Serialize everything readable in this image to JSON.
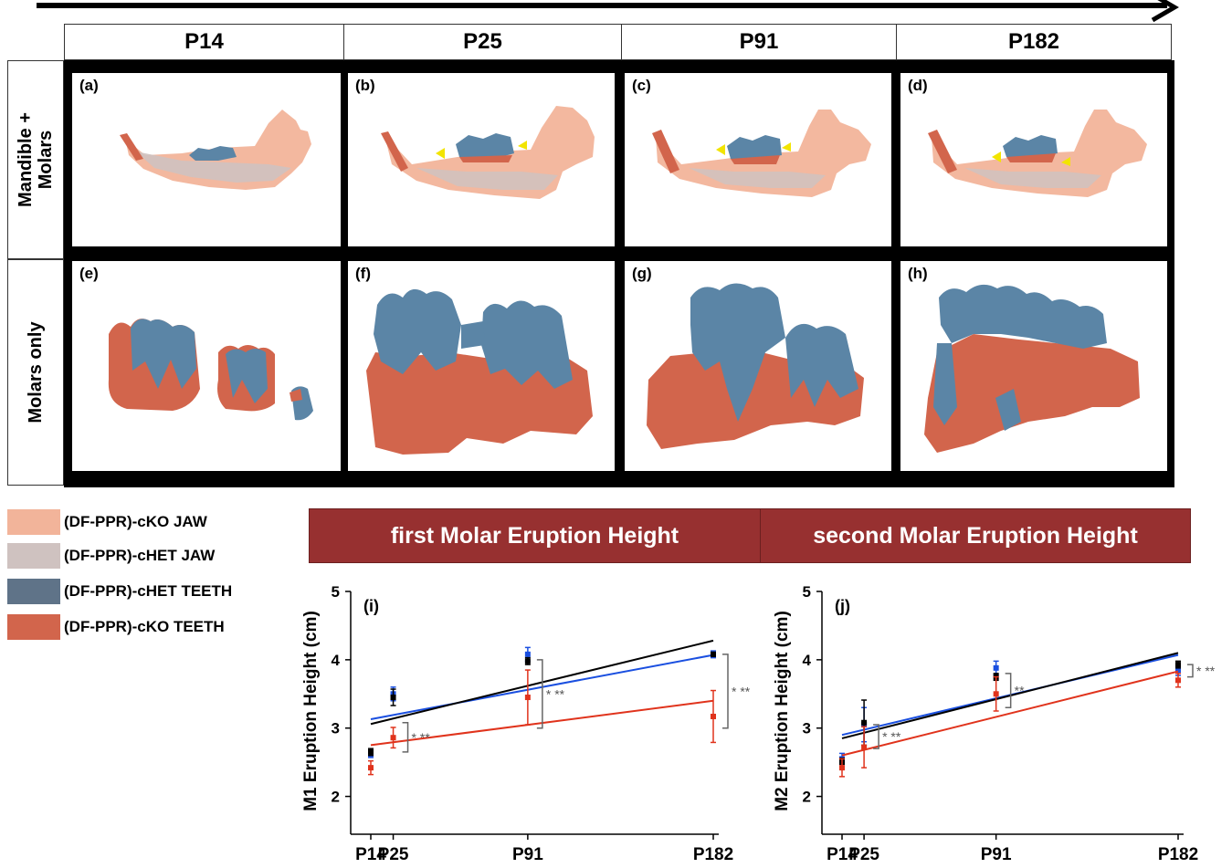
{
  "stages": [
    "P14",
    "P25",
    "P91",
    "P182"
  ],
  "rows": [
    {
      "label": "Mandible +\nMolars"
    },
    {
      "label": "Molars only"
    }
  ],
  "panels": [
    "(a)",
    "(b)",
    "(c)",
    "(d)",
    "(e)",
    "(f)",
    "(g)",
    "(h)"
  ],
  "legend": [
    {
      "label": "(DF-PPR)-cKO JAW",
      "color": "#f2b49a"
    },
    {
      "label": "(DF-PPR)-cHET JAW",
      "color": "#cfc2c0"
    },
    {
      "label": "(DF-PPR)-cHET TEETH",
      "color": "#5f7388"
    },
    {
      "label": "(DF-PPR)-cKO TEETH",
      "color": "#d2654c"
    }
  ],
  "colors": {
    "jaw_cko": "#f2b49a",
    "jaw_chet": "#cfc2c0",
    "teeth_chet": "#5b85a6",
    "teeth_cko": "#d2654c",
    "banner": "#973030"
  },
  "banners": [
    "first Molar Eruption Height",
    "second Molar Eruption Height"
  ],
  "chart_data": [
    {
      "type": "scatter",
      "panel_label": "(i)",
      "title": "first Molar Eruption Height",
      "xlabel": "",
      "ylabel": "M1 Eruption Height (cm)",
      "x": [
        14,
        25,
        91,
        182
      ],
      "x_tick_labels": [
        "P14",
        "P25",
        "P91",
        "P182"
      ],
      "ylim": [
        1.5,
        5
      ],
      "y_ticks": [
        2,
        3,
        4,
        5
      ],
      "series": [
        {
          "color": "#1a4fe0",
          "values": [
            2.62,
            3.5,
            4.08,
            4.08
          ],
          "err": [
            0.05,
            0.1,
            0.1,
            0.05
          ],
          "fit": [
            3.13,
            4.07
          ]
        },
        {
          "color": "#000000",
          "values": [
            2.65,
            3.45,
            3.98,
            4.08
          ],
          "err": [
            0.05,
            0.12,
            0.05,
            0.03
          ],
          "fit": [
            3.06,
            4.28
          ]
        },
        {
          "color": "#e0331c",
          "values": [
            2.42,
            2.86,
            3.45,
            3.17
          ],
          "err": [
            0.1,
            0.15,
            0.4,
            0.38
          ],
          "fit": [
            2.75,
            3.4
          ]
        }
      ],
      "annotations": [
        {
          "x": 25,
          "y_range": [
            2.65,
            3.08
          ],
          "text": "* **"
        },
        {
          "x": 91,
          "y_range": [
            3.0,
            4.0
          ],
          "text": "* **"
        },
        {
          "x": 182,
          "y_range": [
            3.0,
            4.08
          ],
          "text": "* **"
        }
      ]
    },
    {
      "type": "scatter",
      "panel_label": "(j)",
      "title": "second Molar Eruption Height",
      "xlabel": "",
      "ylabel": "M2 Eruption Height (cm)",
      "x": [
        14,
        25,
        91,
        182
      ],
      "x_tick_labels": [
        "P14",
        "P25",
        "P91",
        "P182"
      ],
      "ylim": [
        1.5,
        5
      ],
      "y_ticks": [
        2,
        3,
        4,
        5
      ],
      "series": [
        {
          "color": "#1a4fe0",
          "values": [
            2.55,
            3.05,
            3.88,
            3.85
          ],
          "err": [
            0.08,
            0.25,
            0.1,
            0.08
          ],
          "fit": [
            2.9,
            4.07
          ]
        },
        {
          "color": "#000000",
          "values": [
            2.5,
            3.08,
            3.75,
            3.93
          ],
          "err": [
            0.06,
            0.33,
            0.05,
            0.05
          ],
          "fit": [
            2.85,
            4.1
          ]
        },
        {
          "color": "#e0331c",
          "values": [
            2.42,
            2.72,
            3.5,
            3.7
          ],
          "err": [
            0.13,
            0.3,
            0.25,
            0.1
          ],
          "fit": [
            2.6,
            3.83
          ]
        }
      ],
      "annotations": [
        {
          "x": 25,
          "y_range": [
            2.7,
            3.05
          ],
          "text": "* **"
        },
        {
          "x": 91,
          "y_range": [
            3.3,
            3.8
          ],
          "text": "**"
        },
        {
          "x": 182,
          "y_range": [
            3.75,
            3.93
          ],
          "text": "* **"
        }
      ]
    }
  ]
}
